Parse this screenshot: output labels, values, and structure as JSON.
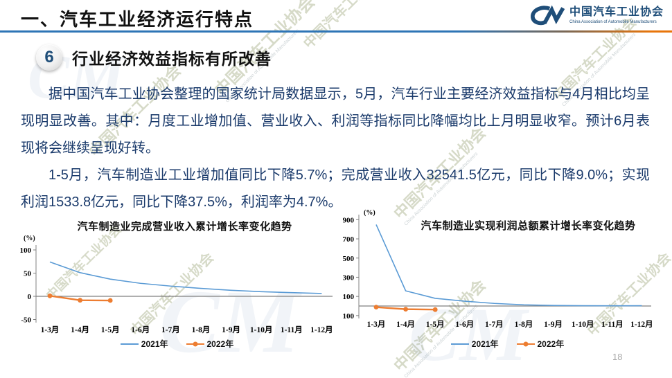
{
  "header": {
    "title": "一、汽车工业经济运行特点"
  },
  "logo": {
    "glyph": "CM",
    "name_cn": "中国汽车工业协会",
    "name_en": "China Association of Automobile Manufacturers"
  },
  "section": {
    "number": "6",
    "heading": "行业经济效益指标有所改善"
  },
  "paragraphs": {
    "p1": "据中国汽车工业协会整理的国家统计局数据显示，5月，汽车行业主要经济效益指标与4月相比均呈现明显改善。其中：月度工业增加值、营业收入、利润等指标同比降幅均比上月明显收窄。预计6月表现将会继续呈现好转。",
    "p2": "1-5月，汽车制造业工业增加值同比下降5.7%；完成营业收入32541.5亿元，同比下降9.0%；实现利润1533.8亿元，同比下降37.5%，利润率为4.7%。"
  },
  "watermark": {
    "text": "中国汽车工业协会",
    "subtext": "China Association of Automobile Manufacturers",
    "logo_glyph": "CM"
  },
  "page_number": "18",
  "colors": {
    "series_2021": "#5B9BD5",
    "series_2022": "#ED7D31",
    "divider_blue": "#2E75B6",
    "divider_orange": "#E8750A",
    "body_text": "#1A3A6B",
    "logo_blue": "#1F4E79"
  },
  "chart_data": [
    {
      "type": "line",
      "title": "汽车制造业完成营业收入累计增长率变化趋势",
      "unit": "(%)",
      "categories": [
        "1-3月",
        "1-4月",
        "1-5月",
        "1-6月",
        "1-7月",
        "1-8月",
        "1-9月",
        "1-10月",
        "1-11月",
        "1-12月"
      ],
      "ylim": [
        -50,
        100
      ],
      "yticks": [
        100,
        50,
        0,
        -50
      ],
      "grid": false,
      "legend_position": "bottom",
      "series": [
        {
          "name": "2021年",
          "color": "#5B9BD5",
          "markers": false,
          "values": [
            74,
            51,
            37,
            28,
            22,
            17,
            13,
            10,
            8,
            6
          ]
        },
        {
          "name": "2022年",
          "color": "#ED7D31",
          "markers": true,
          "values": [
            1.0,
            -8.5,
            -9.0
          ]
        }
      ]
    },
    {
      "type": "line",
      "title": "汽车制造业实现利润总额累计增长率变化趋势",
      "unit": "(%)",
      "categories": [
        "1-3月",
        "1-4月",
        "1-5月",
        "1-6月",
        "1-7月",
        "1-8月",
        "1-9月",
        "1-10月",
        "1-11月",
        "1-12月"
      ],
      "ylim": [
        -100,
        900
      ],
      "yticks": [
        900,
        700,
        500,
        300,
        100,
        -100
      ],
      "grid": false,
      "legend_position": "bottom",
      "series": [
        {
          "name": "2021年",
          "color": "#5B9BD5",
          "markers": false,
          "values": [
            849,
            158,
            80,
            50,
            27,
            12,
            6,
            3,
            2,
            3
          ]
        },
        {
          "name": "2022年",
          "color": "#ED7D31",
          "markers": true,
          "values": [
            -11.9,
            -33.4,
            -37.5
          ]
        }
      ]
    }
  ]
}
